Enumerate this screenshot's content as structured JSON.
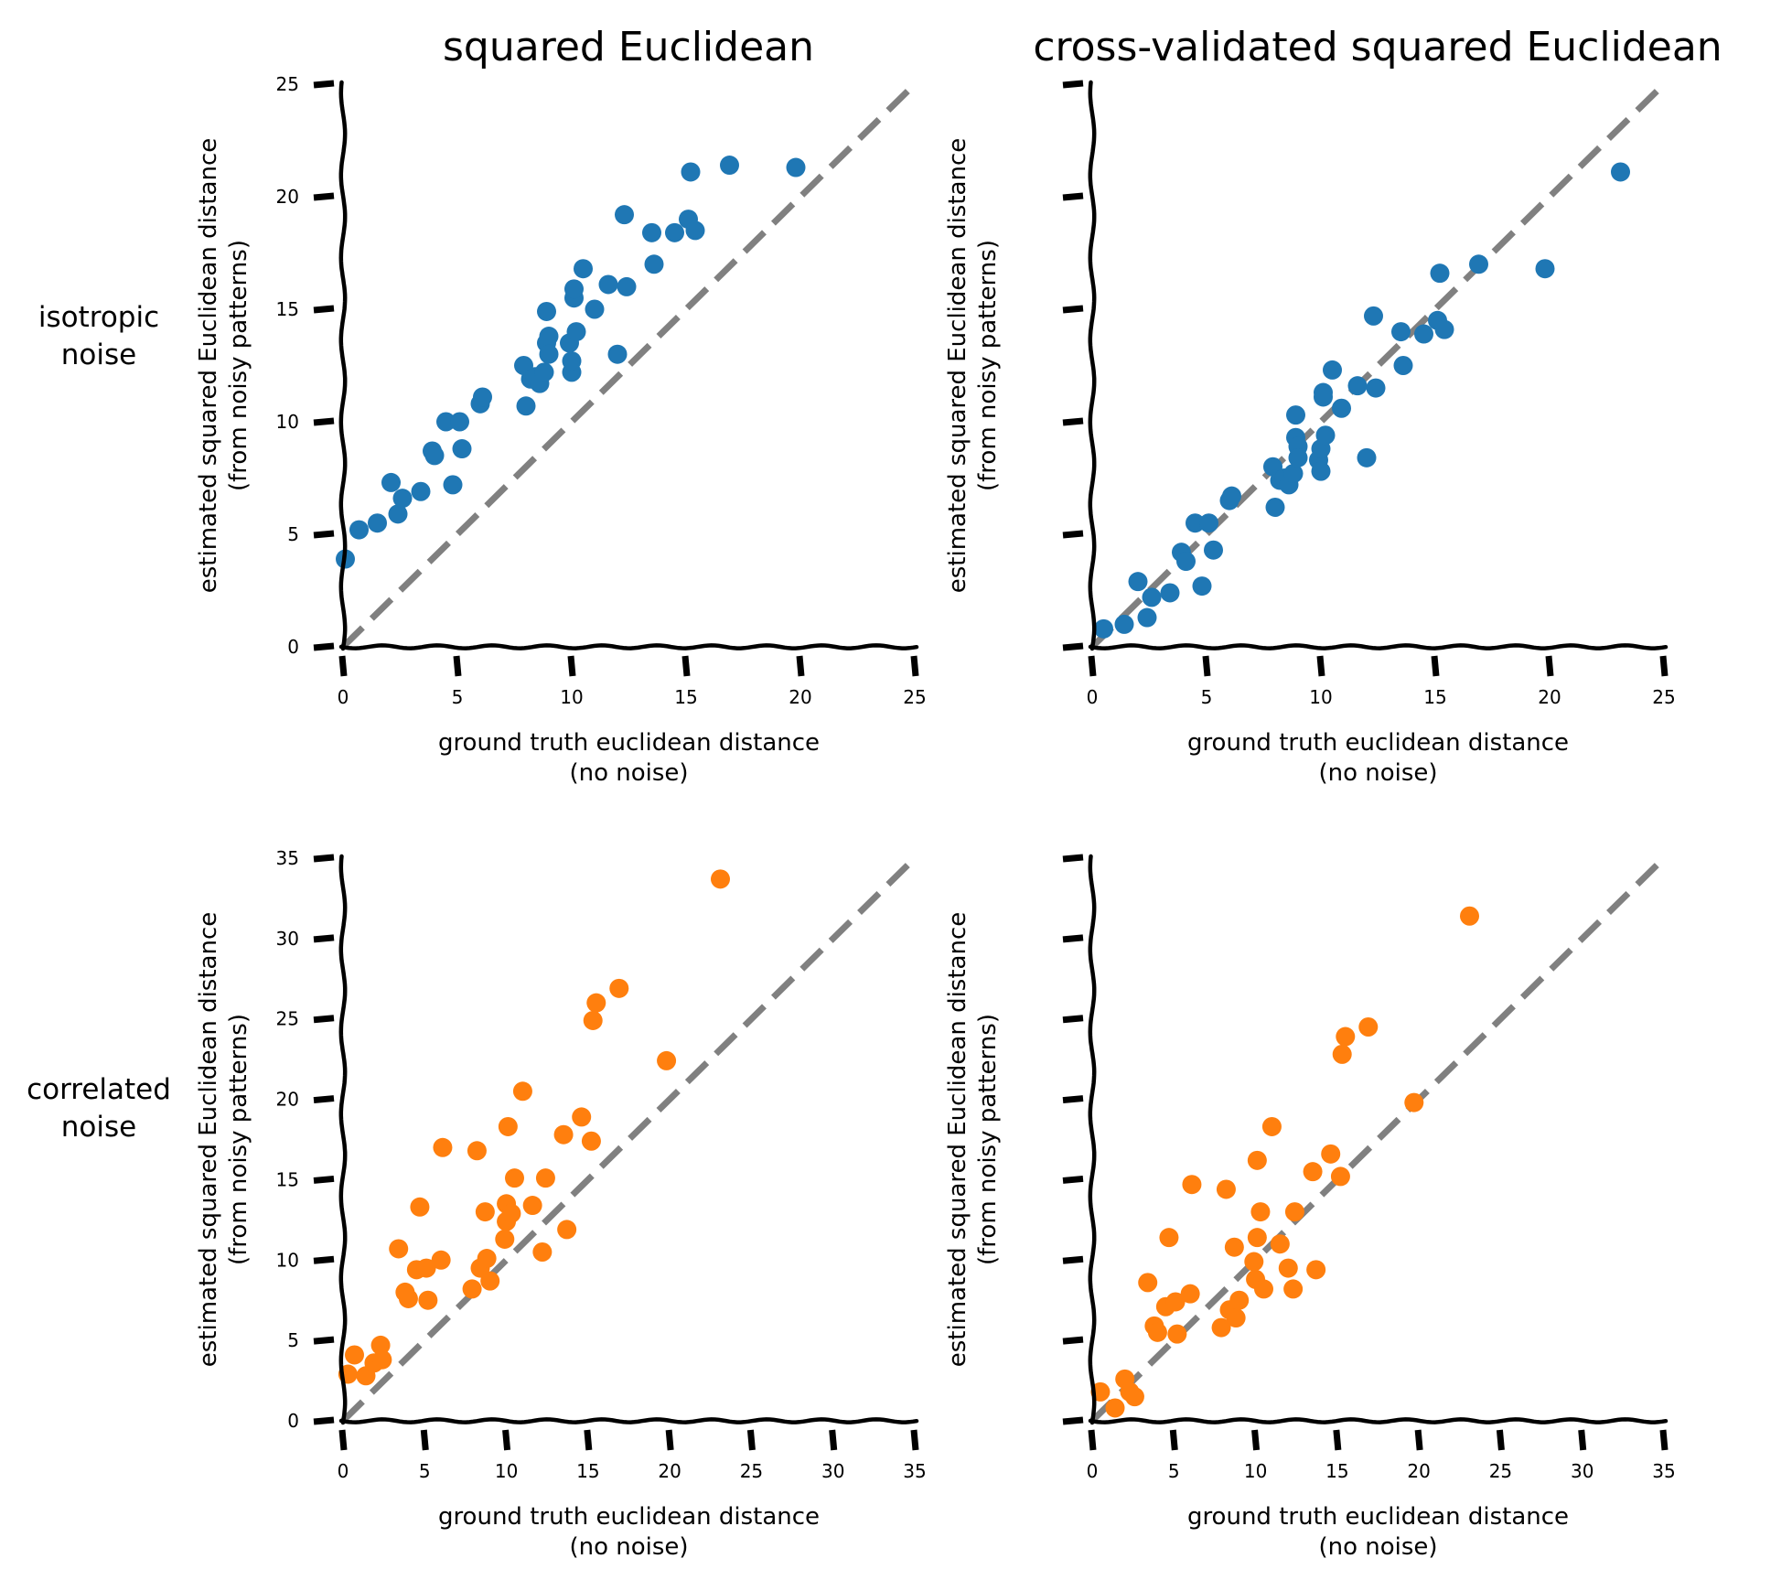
{
  "figure": {
    "row_labels": [
      {
        "line1": "isotropic",
        "line2": "noise"
      },
      {
        "line1": "correlated",
        "line2": "noise"
      }
    ]
  },
  "colors": {
    "blue": "#1f77b4",
    "orange": "#ff7f0e",
    "identity": "#808080"
  },
  "chart_data": [
    {
      "type": "scatter",
      "title": "squared Euclidean",
      "xlabel": [
        "ground truth euclidean distance",
        "(no noise)"
      ],
      "ylabel": [
        "estimated squared Euclidean distance",
        "(from noisy patterns)"
      ],
      "xlim": [
        0,
        25
      ],
      "ylim": [
        0,
        25
      ],
      "xticks": [
        0,
        5,
        10,
        15,
        20,
        25
      ],
      "yticks": [
        0,
        5,
        10,
        15,
        20,
        25
      ],
      "xtick_labels": [
        "0",
        "5",
        "10",
        "15",
        "20",
        "25"
      ],
      "ytick_labels": [
        "0",
        "5",
        "10",
        "15",
        "20",
        "25"
      ],
      "identity_line": true,
      "color": "#1f77b4",
      "points": [
        [
          0.1,
          3.9
        ],
        [
          0.7,
          5.2
        ],
        [
          1.5,
          5.5
        ],
        [
          2.1,
          7.3
        ],
        [
          2.4,
          5.9
        ],
        [
          2.6,
          6.6
        ],
        [
          3.4,
          6.9
        ],
        [
          3.9,
          8.7
        ],
        [
          4.0,
          8.5
        ],
        [
          4.5,
          10.0
        ],
        [
          4.8,
          7.2
        ],
        [
          5.1,
          10.0
        ],
        [
          5.2,
          8.8
        ],
        [
          6.0,
          10.8
        ],
        [
          6.1,
          11.1
        ],
        [
          7.9,
          12.5
        ],
        [
          8.0,
          10.7
        ],
        [
          8.2,
          11.9
        ],
        [
          8.4,
          12.0
        ],
        [
          8.6,
          11.7
        ],
        [
          8.8,
          12.2
        ],
        [
          8.9,
          13.5
        ],
        [
          8.9,
          14.9
        ],
        [
          9.0,
          13.8
        ],
        [
          9.0,
          13.0
        ],
        [
          9.9,
          13.5
        ],
        [
          10.0,
          12.2
        ],
        [
          10.0,
          12.7
        ],
        [
          10.1,
          15.5
        ],
        [
          10.1,
          15.9
        ],
        [
          10.2,
          14.0
        ],
        [
          10.5,
          16.8
        ],
        [
          11.0,
          15.0
        ],
        [
          11.6,
          16.1
        ],
        [
          12.0,
          13.0
        ],
        [
          12.3,
          19.2
        ],
        [
          12.4,
          16.0
        ],
        [
          13.5,
          18.4
        ],
        [
          13.6,
          17.0
        ],
        [
          14.5,
          18.4
        ],
        [
          15.1,
          19.0
        ],
        [
          15.2,
          21.1
        ],
        [
          15.4,
          18.5
        ],
        [
          16.9,
          21.4
        ],
        [
          19.8,
          21.3
        ]
      ]
    },
    {
      "type": "scatter",
      "title": "cross-validated squared Euclidean",
      "xlabel": [
        "ground truth euclidean distance",
        "(no noise)"
      ],
      "ylabel": [
        "estimated squared Euclidean distance",
        "(from noisy patterns)"
      ],
      "xlim": [
        0,
        25
      ],
      "ylim": [
        0,
        25
      ],
      "xticks": [
        0,
        5,
        10,
        15,
        20,
        25
      ],
      "yticks": [
        0,
        5,
        10,
        15,
        20,
        25
      ],
      "xtick_labels": [
        "0",
        "5",
        "10",
        "15",
        "20",
        "25"
      ],
      "ytick_labels": [],
      "identity_line": true,
      "color": "#1f77b4",
      "points": [
        [
          0.5,
          0.8
        ],
        [
          1.4,
          1.0
        ],
        [
          2.0,
          2.9
        ],
        [
          2.4,
          1.3
        ],
        [
          2.6,
          2.2
        ],
        [
          3.4,
          2.4
        ],
        [
          3.9,
          4.2
        ],
        [
          4.1,
          3.8
        ],
        [
          4.5,
          5.5
        ],
        [
          4.8,
          2.7
        ],
        [
          5.1,
          5.5
        ],
        [
          5.3,
          4.3
        ],
        [
          6.0,
          6.5
        ],
        [
          6.1,
          6.7
        ],
        [
          7.9,
          8.0
        ],
        [
          8.0,
          6.2
        ],
        [
          8.2,
          7.4
        ],
        [
          8.4,
          7.5
        ],
        [
          8.6,
          7.2
        ],
        [
          8.8,
          7.7
        ],
        [
          8.9,
          9.3
        ],
        [
          8.9,
          10.3
        ],
        [
          9.0,
          8.9
        ],
        [
          9.0,
          8.4
        ],
        [
          9.9,
          8.3
        ],
        [
          10.0,
          7.8
        ],
        [
          10.0,
          8.8
        ],
        [
          10.1,
          11.1
        ],
        [
          10.1,
          11.3
        ],
        [
          10.2,
          9.4
        ],
        [
          10.5,
          12.3
        ],
        [
          10.9,
          10.6
        ],
        [
          11.6,
          11.6
        ],
        [
          12.0,
          8.4
        ],
        [
          12.3,
          14.7
        ],
        [
          12.4,
          11.5
        ],
        [
          13.5,
          14.0
        ],
        [
          13.6,
          12.5
        ],
        [
          14.5,
          13.9
        ],
        [
          15.1,
          14.5
        ],
        [
          15.2,
          16.6
        ],
        [
          15.4,
          14.1
        ],
        [
          16.9,
          17.0
        ],
        [
          19.8,
          16.8
        ],
        [
          23.1,
          21.1
        ]
      ]
    },
    {
      "type": "scatter",
      "title": "",
      "xlabel": [
        "ground truth euclidean distance",
        "(no noise)"
      ],
      "ylabel": [
        "estimated squared Euclidean distance",
        "(from noisy patterns)"
      ],
      "xlim": [
        0,
        35
      ],
      "ylim": [
        0,
        35
      ],
      "xticks": [
        0,
        5,
        10,
        15,
        20,
        25,
        30,
        35
      ],
      "yticks": [
        0,
        5,
        10,
        15,
        20,
        25,
        30,
        35
      ],
      "xtick_labels": [
        "0",
        "5",
        "10",
        "15",
        "20",
        "25",
        "30",
        "35"
      ],
      "ytick_labels": [
        "0",
        "5",
        "10",
        "15",
        "20",
        "25",
        "30",
        "35"
      ],
      "identity_line": true,
      "color": "#ff7f0e",
      "points": [
        [
          0.3,
          2.9
        ],
        [
          0.7,
          4.1
        ],
        [
          1.4,
          2.8
        ],
        [
          1.9,
          3.6
        ],
        [
          2.3,
          4.7
        ],
        [
          2.4,
          3.8
        ],
        [
          3.4,
          10.7
        ],
        [
          3.8,
          8.0
        ],
        [
          4.0,
          7.6
        ],
        [
          4.5,
          9.4
        ],
        [
          4.7,
          13.3
        ],
        [
          5.1,
          9.5
        ],
        [
          5.2,
          7.5
        ],
        [
          6.0,
          10.0
        ],
        [
          6.1,
          17.0
        ],
        [
          7.9,
          8.2
        ],
        [
          8.2,
          16.8
        ],
        [
          8.4,
          9.5
        ],
        [
          8.7,
          13.0
        ],
        [
          8.8,
          10.1
        ],
        [
          9.0,
          8.7
        ],
        [
          9.9,
          11.3
        ],
        [
          10.0,
          12.4
        ],
        [
          10.0,
          13.5
        ],
        [
          10.1,
          18.3
        ],
        [
          10.3,
          12.9
        ],
        [
          10.5,
          15.1
        ],
        [
          11.0,
          20.5
        ],
        [
          11.6,
          13.4
        ],
        [
          12.2,
          10.5
        ],
        [
          12.4,
          15.1
        ],
        [
          13.5,
          17.8
        ],
        [
          13.7,
          11.9
        ],
        [
          14.6,
          18.9
        ],
        [
          15.2,
          17.4
        ],
        [
          15.3,
          24.9
        ],
        [
          15.5,
          26.0
        ],
        [
          16.9,
          26.9
        ],
        [
          19.8,
          22.4
        ],
        [
          23.1,
          33.7
        ]
      ]
    },
    {
      "type": "scatter",
      "title": "",
      "xlabel": [
        "ground truth euclidean distance",
        "(no noise)"
      ],
      "ylabel": [
        "estimated squared Euclidean distance",
        "(from noisy patterns)"
      ],
      "xlim": [
        0,
        35
      ],
      "ylim": [
        0,
        35
      ],
      "xticks": [
        0,
        5,
        10,
        15,
        20,
        25,
        30,
        35
      ],
      "yticks": [
        0,
        5,
        10,
        15,
        20,
        25,
        30,
        35
      ],
      "xtick_labels": [
        "0",
        "5",
        "10",
        "15",
        "20",
        "25",
        "30",
        "35"
      ],
      "ytick_labels": [],
      "identity_line": true,
      "color": "#ff7f0e",
      "points": [
        [
          0.5,
          1.8
        ],
        [
          1.4,
          0.8
        ],
        [
          2.0,
          2.6
        ],
        [
          2.3,
          1.8
        ],
        [
          2.6,
          1.5
        ],
        [
          3.4,
          8.6
        ],
        [
          3.8,
          5.9
        ],
        [
          4.0,
          5.5
        ],
        [
          4.5,
          7.1
        ],
        [
          4.7,
          11.4
        ],
        [
          5.1,
          7.4
        ],
        [
          5.2,
          5.4
        ],
        [
          6.0,
          7.9
        ],
        [
          6.1,
          14.7
        ],
        [
          7.9,
          5.8
        ],
        [
          8.2,
          14.4
        ],
        [
          8.4,
          6.9
        ],
        [
          8.7,
          10.8
        ],
        [
          8.8,
          6.4
        ],
        [
          9.0,
          7.5
        ],
        [
          9.9,
          9.9
        ],
        [
          10.0,
          8.8
        ],
        [
          10.1,
          11.4
        ],
        [
          10.1,
          16.2
        ],
        [
          10.3,
          13.0
        ],
        [
          10.5,
          8.2
        ],
        [
          11.0,
          18.3
        ],
        [
          11.5,
          11.0
        ],
        [
          12.0,
          9.5
        ],
        [
          12.3,
          8.2
        ],
        [
          12.4,
          13.0
        ],
        [
          13.5,
          15.5
        ],
        [
          13.7,
          9.4
        ],
        [
          14.6,
          16.6
        ],
        [
          15.2,
          15.2
        ],
        [
          15.3,
          22.8
        ],
        [
          15.5,
          23.9
        ],
        [
          16.9,
          24.5
        ],
        [
          19.7,
          19.8
        ],
        [
          23.1,
          31.4
        ]
      ]
    }
  ]
}
